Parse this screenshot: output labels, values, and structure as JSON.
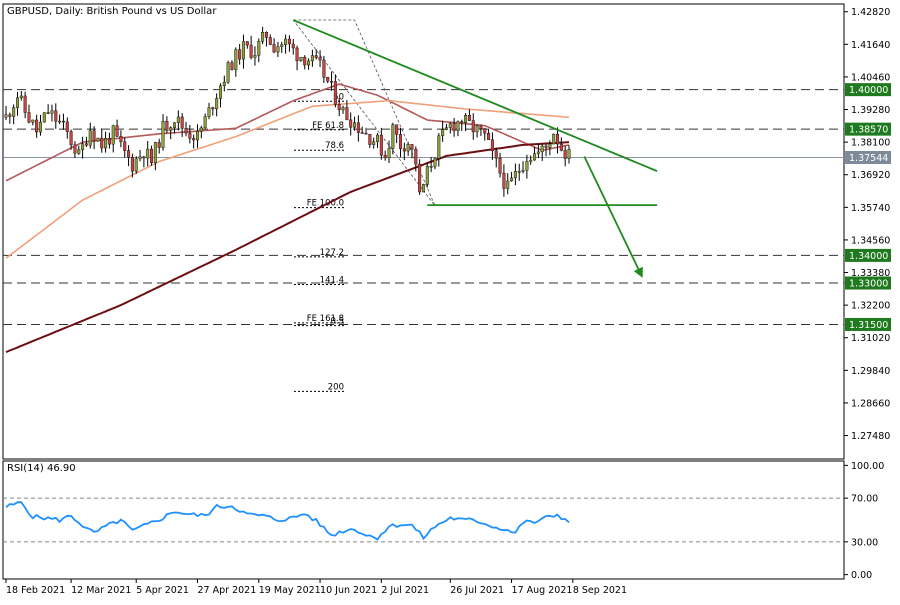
{
  "chart_data": [
    {
      "type": "candlestick",
      "title": "GBPUSD, Daily:  British Pound vs US Dollar",
      "ylim": [
        1.2663,
        1.431
      ],
      "y_ticks": [
        "1.42820",
        "1.41640",
        "1.40460",
        "1.39280",
        "1.38100",
        "1.36920",
        "1.35740",
        "1.34560",
        "1.33380",
        "1.32200",
        "1.31020",
        "1.29840",
        "1.28660",
        "1.27480"
      ],
      "y_tick_values": [
        1.4282,
        1.4164,
        1.4046,
        1.3928,
        1.381,
        1.3692,
        1.3574,
        1.3456,
        1.3338,
        1.322,
        1.3102,
        1.2984,
        1.2866,
        1.2748
      ],
      "x_ticks": [
        "18 Feb 2021",
        "12 Mar 2021",
        "5 Apr 2021",
        "27 Apr 2021",
        "19 May 2021",
        "10 Jun 2021",
        "2 Jul 2021",
        "26 Jul 2021",
        "17 Aug 2021",
        "8 Sep 2021"
      ],
      "x_tick_bars": [
        0,
        17,
        34,
        50,
        66,
        82,
        98,
        116,
        132,
        148
      ],
      "bar_count": 150,
      "price_anchors": [
        [
          0,
          1.39
        ],
        [
          3,
          1.398
        ],
        [
          5,
          1.392
        ],
        [
          8,
          1.385
        ],
        [
          11,
          1.392
        ],
        [
          14,
          1.388
        ],
        [
          16,
          1.384
        ],
        [
          19,
          1.376
        ],
        [
          22,
          1.386
        ],
        [
          25,
          1.38
        ],
        [
          28,
          1.384
        ],
        [
          30,
          1.379
        ],
        [
          33,
          1.373
        ],
        [
          36,
          1.378
        ],
        [
          38,
          1.374
        ],
        [
          41,
          1.386
        ],
        [
          44,
          1.39
        ],
        [
          47,
          1.385
        ],
        [
          50,
          1.383
        ],
        [
          53,
          1.392
        ],
        [
          56,
          1.402
        ],
        [
          59,
          1.41
        ],
        [
          62,
          1.415
        ],
        [
          65,
          1.414
        ],
        [
          68,
          1.42
        ],
        [
          70,
          1.416
        ],
        [
          73,
          1.417
        ],
        [
          76,
          1.413
        ],
        [
          79,
          1.411
        ],
        [
          82,
          1.408
        ],
        [
          85,
          1.4
        ],
        [
          88,
          1.392
        ],
        [
          91,
          1.388
        ],
        [
          94,
          1.384
        ],
        [
          97,
          1.381
        ],
        [
          99,
          1.376
        ],
        [
          101,
          1.386
        ],
        [
          103,
          1.38
        ],
        [
          105,
          1.381
        ],
        [
          107,
          1.374
        ],
        [
          108,
          1.361
        ],
        [
          110,
          1.37
        ],
        [
          113,
          1.381
        ],
        [
          116,
          1.387
        ],
        [
          119,
          1.389
        ],
        [
          122,
          1.386
        ],
        [
          125,
          1.383
        ],
        [
          127,
          1.376
        ],
        [
          129,
          1.37
        ],
        [
          131,
          1.364
        ],
        [
          133,
          1.369
        ],
        [
          136,
          1.376
        ],
        [
          139,
          1.377
        ],
        [
          141,
          1.379
        ],
        [
          143,
          1.385
        ],
        [
          145,
          1.379
        ],
        [
          147,
          1.376
        ]
      ],
      "horizontal_levels": [
        {
          "label": "1.40000",
          "value": 1.4,
          "style": "dashed",
          "badge": "#1f7a1f"
        },
        {
          "label": "1.38570",
          "value": 1.3857,
          "style": "dashed",
          "badge": "#1f7a1f"
        },
        {
          "label": "1.37544",
          "value": 1.37544,
          "style": "solid",
          "badge": "#7d8a99"
        },
        {
          "label": "1.34000",
          "value": 1.34,
          "style": "dashed",
          "badge": "#1f7a1f"
        },
        {
          "label": "1.33000",
          "value": 1.33,
          "style": "dashed",
          "badge": "#1f7a1f"
        },
        {
          "label": "1.31500",
          "value": 1.315,
          "style": "dashed",
          "badge": "#1f7a1f"
        }
      ],
      "fibonacci_labels": [
        "50",
        "FE 61.8",
        "78.6",
        "FE 100.0",
        "127.2",
        "141.4",
        "FE 161.8",
        "0.5",
        "200"
      ],
      "moving_averages": [
        {
          "color": "#b35959",
          "start": 1.367,
          "anchors": [
            [
              0,
              1.367
            ],
            [
              20,
              1.381
            ],
            [
              40,
              1.384
            ],
            [
              60,
              1.386
            ],
            [
              75,
              1.396
            ],
            [
              87,
              1.402
            ],
            [
              97,
              1.398
            ],
            [
              110,
              1.389
            ],
            [
              125,
              1.387
            ],
            [
              140,
              1.378
            ],
            [
              147,
              1.38
            ]
          ]
        },
        {
          "color": "#f0a07a",
          "start": 1.339,
          "anchors": [
            [
              0,
              1.339
            ],
            [
              20,
              1.36
            ],
            [
              40,
              1.374
            ],
            [
              60,
              1.383
            ],
            [
              80,
              1.394
            ],
            [
              100,
              1.396
            ],
            [
              120,
              1.393
            ],
            [
              147,
              1.39
            ]
          ]
        },
        {
          "color": "#6b0f12",
          "start": 1.305,
          "anchors": [
            [
              0,
              1.305
            ],
            [
              30,
              1.322
            ],
            [
              60,
              1.342
            ],
            [
              90,
              1.363
            ],
            [
              115,
              1.376
            ],
            [
              135,
              1.38
            ],
            [
              147,
              1.381
            ]
          ]
        }
      ],
      "trendlines": [
        {
          "color": "#1f8a1f",
          "p1": [
            75,
            1.4252
          ],
          "p2": [
            170,
            1.3705
          ]
        },
        {
          "color": "#1f8a1f",
          "p1": [
            110,
            1.3582
          ],
          "p2": [
            170,
            1.3582
          ]
        },
        {
          "color": "#1f8a1f",
          "arrow": true,
          "p1": [
            151,
            1.3758
          ],
          "p2": [
            166,
            1.3325
          ]
        }
      ]
    },
    {
      "type": "line",
      "title": "RSI(14) 46.90",
      "ylim": [
        -4,
        104
      ],
      "y_ticks": [
        "100.00",
        "70.00",
        "30.00",
        "0.00"
      ],
      "y_tick_values": [
        100,
        70,
        30,
        0
      ],
      "levels": [
        70,
        30
      ],
      "color": "#1e90ff",
      "series_anchors": [
        [
          0,
          62
        ],
        [
          4,
          66
        ],
        [
          7,
          53
        ],
        [
          10,
          52
        ],
        [
          14,
          50
        ],
        [
          17,
          54
        ],
        [
          21,
          42
        ],
        [
          23,
          38
        ],
        [
          26,
          44
        ],
        [
          30,
          50
        ],
        [
          33,
          40
        ],
        [
          37,
          46
        ],
        [
          41,
          52
        ],
        [
          44,
          58
        ],
        [
          48,
          55
        ],
        [
          52,
          54
        ],
        [
          55,
          62
        ],
        [
          59,
          63
        ],
        [
          63,
          55
        ],
        [
          67,
          54
        ],
        [
          71,
          50
        ],
        [
          75,
          52
        ],
        [
          78,
          56
        ],
        [
          81,
          49
        ],
        [
          85,
          36
        ],
        [
          88,
          40
        ],
        [
          91,
          42
        ],
        [
          94,
          36
        ],
        [
          97,
          34
        ],
        [
          100,
          44
        ],
        [
          103,
          46
        ],
        [
          106,
          45
        ],
        [
          109,
          34
        ],
        [
          112,
          44
        ],
        [
          116,
          52
        ],
        [
          119,
          50
        ],
        [
          122,
          50
        ],
        [
          125,
          47
        ],
        [
          128,
          43
        ],
        [
          130,
          42
        ],
        [
          133,
          38
        ],
        [
          135,
          48
        ],
        [
          138,
          48
        ],
        [
          141,
          52
        ],
        [
          144,
          55
        ],
        [
          147,
          48
        ]
      ]
    }
  ]
}
